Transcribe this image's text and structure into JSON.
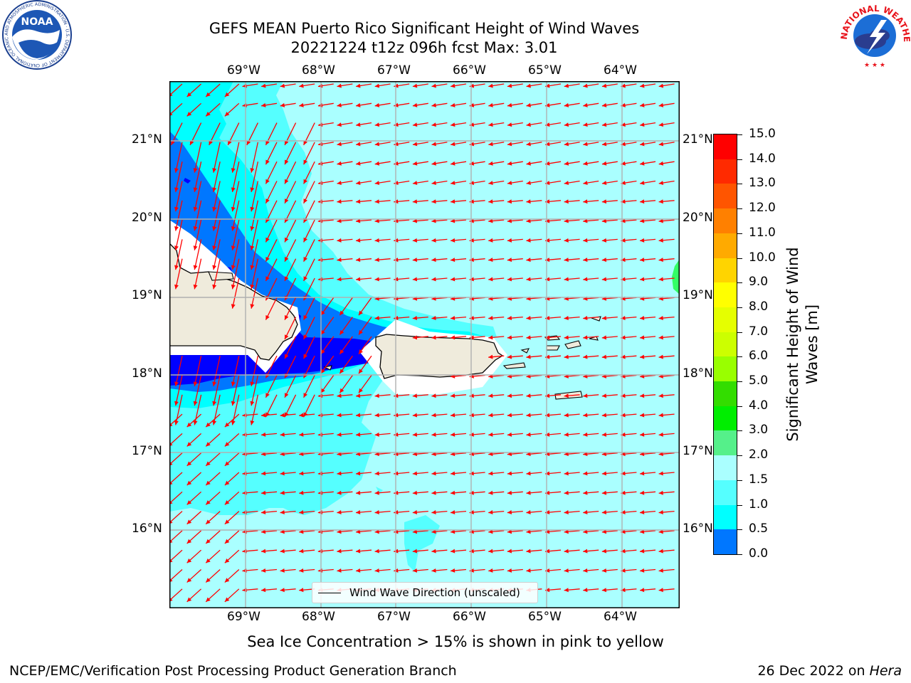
{
  "title": {
    "line1": "GEFS MEAN Puerto Rico Significant Height of Wind Waves",
    "line2": "20221224 t12z 096h fcst   Max: 3.01"
  },
  "logos": {
    "noaa_text": "NOAA",
    "noaa_ring": "NATIONAL OCEANIC AND ATMOSPHERIC ADMINISTRATION · U.S. DEPARTMENT OF COMMERCE",
    "nws_ring": "NATIONAL WEATHER SERVICE"
  },
  "map": {
    "lon_labels": [
      "69°W",
      "68°W",
      "67°W",
      "66°W",
      "65°W",
      "64°W"
    ],
    "lat_labels": [
      "21°N",
      "20°N",
      "19°N",
      "18°N",
      "17°N",
      "16°N"
    ],
    "legend_label": "Wind Wave Direction (unscaled)",
    "arrow_color": "#ff0000"
  },
  "colorbar": {
    "label": "Significant Height of Wind Waves [m]",
    "ticks": [
      "15.0",
      "14.0",
      "13.0",
      "12.0",
      "11.0",
      "10.0",
      "9.0",
      "8.0",
      "7.0",
      "6.0",
      "5.0",
      "4.0",
      "3.0",
      "2.0",
      "1.5",
      "1.0",
      "0.5",
      "0.0"
    ],
    "colors": [
      "#ff0000",
      "#ff2a00",
      "#ff5500",
      "#ff8000",
      "#ffaa00",
      "#ffd400",
      "#ffff00",
      "#e5ff00",
      "#ccff00",
      "#99ff00",
      "#33dd00",
      "#00ee00",
      "#55f08a",
      "#aaffff",
      "#55ffff",
      "#00ffff",
      "#0077ff",
      "#0000ff"
    ]
  },
  "footer": {
    "sea_ice": "Sea Ice Concentration > 15% is shown in pink to yellow",
    "left": "NCEP/EMC/Verification Post Processing Product Generation Branch",
    "right_prefix": "26 Dec 2022 on ",
    "right_machine": "Hera"
  }
}
